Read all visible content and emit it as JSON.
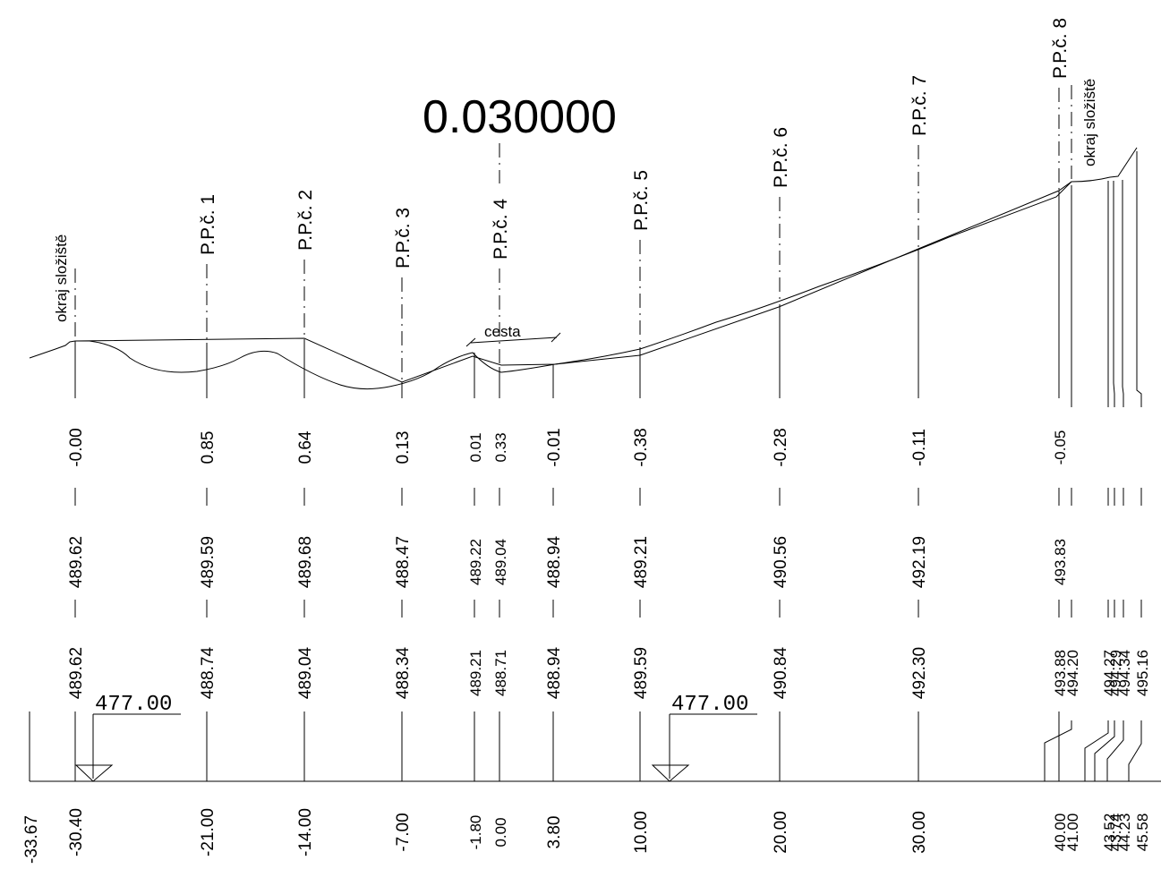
{
  "drawing": {
    "scale_label": "0.030000",
    "road_label": "cesta",
    "left_edge_label": "okraj složiště",
    "right_edge_label": "okraj složiště",
    "datum_left": "477.00",
    "datum_right": "477.00"
  },
  "chart_data": {
    "type": "line",
    "stations": [
      {
        "offset": "-33.67",
        "existing": null,
        "design": null,
        "diff": null,
        "label": ""
      },
      {
        "offset": "-30.40",
        "existing": "489.62",
        "design": "489.62",
        "diff": "-0.00",
        "label": "okraj složiště"
      },
      {
        "offset": "-21.00",
        "existing": "488.74",
        "design": "489.59",
        "diff": "0.85",
        "label": "P.P.č. 1"
      },
      {
        "offset": "-14.00",
        "existing": "489.04",
        "design": "489.68",
        "diff": "0.64",
        "label": "P.P.č. 2"
      },
      {
        "offset": "-7.00",
        "existing": "488.34",
        "design": "488.47",
        "diff": "0.13",
        "label": "P.P.č. 3"
      },
      {
        "offset": "-1.80",
        "existing": "489.21",
        "design": "489.22",
        "diff": "0.01",
        "label": ""
      },
      {
        "offset": "0.00",
        "existing": "488.71",
        "design": "489.04",
        "diff": "0.33",
        "label": "P.P.č. 4"
      },
      {
        "offset": "3.80",
        "existing": "488.94",
        "design": "488.94",
        "diff": "-0.01",
        "label": ""
      },
      {
        "offset": "10.00",
        "existing": "489.59",
        "design": "489.21",
        "diff": "-0.38",
        "label": "P.P.č. 5"
      },
      {
        "offset": "20.00",
        "existing": "490.84",
        "design": "490.56",
        "diff": "-0.28",
        "label": "P.P.č. 6"
      },
      {
        "offset": "30.00",
        "existing": "492.30",
        "design": "492.19",
        "diff": "-0.11",
        "label": "P.P.č. 7"
      },
      {
        "offset": "40.00",
        "existing": "493.88",
        "design": "493.83",
        "diff": "-0.05",
        "label": "P.P.č. 8"
      },
      {
        "offset": "41.00",
        "existing": "494.20",
        "design": null,
        "diff": null,
        "label": "okraj složiště"
      },
      {
        "offset": "43.52",
        "existing": "494.27",
        "design": null,
        "diff": null,
        "label": ""
      },
      {
        "offset": "43.74",
        "existing": "494.29",
        "design": null,
        "diff": null,
        "label": ""
      },
      {
        "offset": "44.23",
        "existing": "494.34",
        "design": null,
        "diff": null,
        "label": ""
      },
      {
        "offset": "45.58",
        "existing": "495.16",
        "design": null,
        "diff": null,
        "label": ""
      }
    ]
  }
}
